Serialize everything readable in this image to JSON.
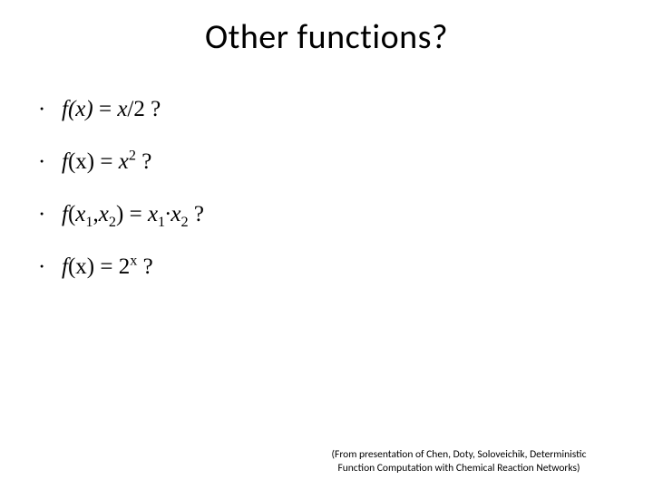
{
  "slide": {
    "title": "Other functions?",
    "bullets": [
      {
        "fx": "f(x)",
        "mid": " = ",
        "rhs_var": "x",
        "rhs_rest": "/2 ?"
      },
      {
        "fx": "f",
        "args": "(x) = ",
        "rhs_x": "x",
        "sup": "2",
        "tail": " ?"
      },
      {
        "fx": "f",
        "open": "(",
        "x1": "x",
        "s1": "1",
        "comma": ",",
        "x2": "x",
        "s2": "2",
        "close": ") = ",
        "rx1": "x",
        "rs1": "1",
        "dot": "∙",
        "rx2": "x",
        "rs2": "2",
        "tail": " ?"
      },
      {
        "fx": "f",
        "args": "(x) = 2",
        "sup": "x",
        "tail": " ?"
      }
    ],
    "citation_line1": "(From presentation of Chen, Doty, Soloveichik, Deterministic",
    "citation_line2": "Function Computation with Chemical Reaction Networks)"
  },
  "style": {
    "background_color": "#ffffff",
    "text_color": "#000000",
    "title_fontsize": 38,
    "body_fontsize": 25,
    "citation_fontsize": 11.5,
    "title_font": "Calibri",
    "body_font": "Times New Roman"
  }
}
